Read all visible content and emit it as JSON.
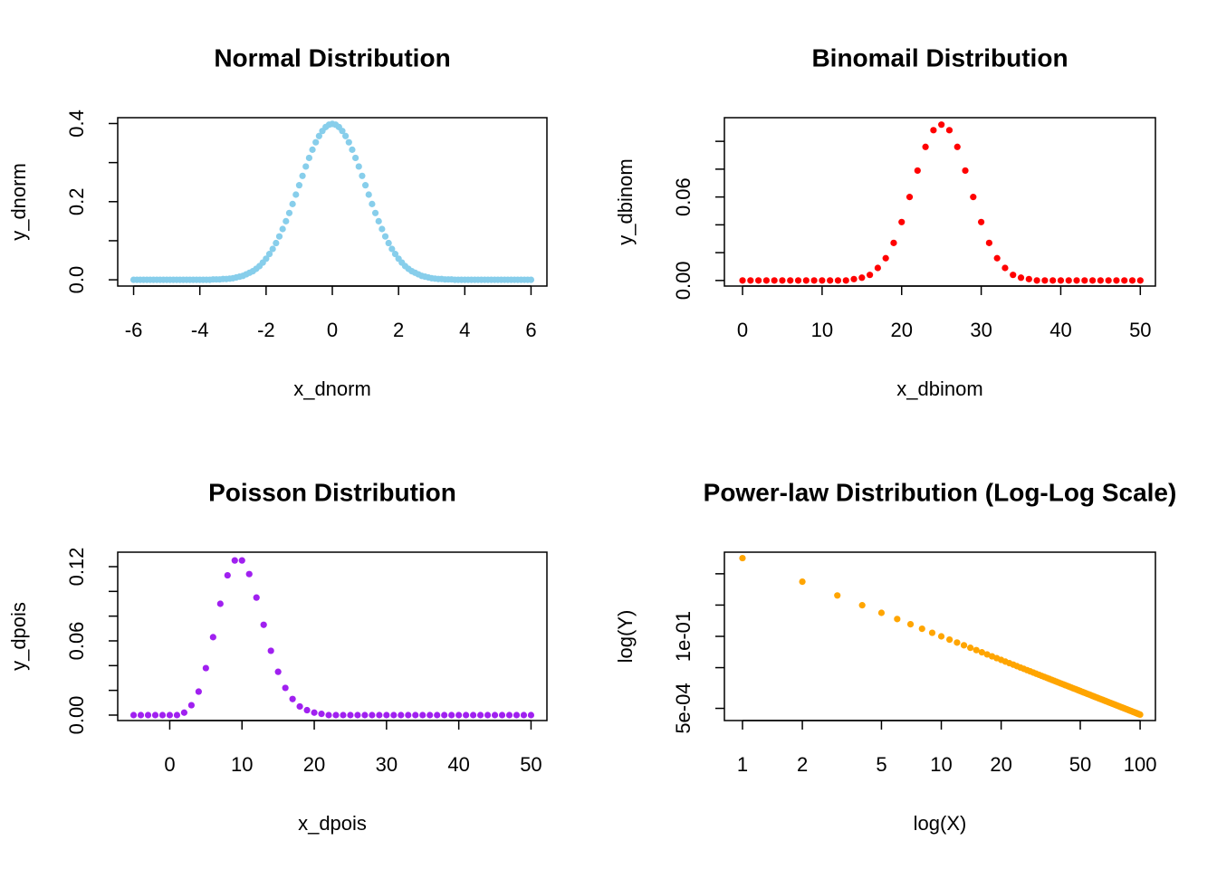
{
  "chart_data": [
    {
      "type": "scatter",
      "title": "Normal Distribution",
      "x_label": "x_dnorm",
      "y_label": "y_dnorm",
      "color": "#87ceeb",
      "x": [
        -6,
        -5.9,
        -5.8,
        -5.7,
        -5.6,
        -5.5,
        -5.4,
        -5.3,
        -5.2,
        -5.1,
        -5,
        -4.9,
        -4.8,
        -4.7,
        -4.6,
        -4.5,
        -4.4,
        -4.3,
        -4.2,
        -4.1,
        -4,
        -3.9,
        -3.8,
        -3.7,
        -3.6,
        -3.5,
        -3.4,
        -3.3,
        -3.2,
        -3.1,
        -3,
        -2.9,
        -2.8,
        -2.7,
        -2.6,
        -2.5,
        -2.4,
        -2.3,
        -2.2,
        -2.1,
        -2,
        -1.9,
        -1.8,
        -1.7,
        -1.6,
        -1.5,
        -1.4,
        -1.3,
        -1.2,
        -1.1,
        -1,
        -0.9,
        -0.8,
        -0.7,
        -0.6,
        -0.5,
        -0.4,
        -0.3,
        -0.2,
        -0.1,
        0,
        0.1,
        0.2,
        0.3,
        0.4,
        0.5,
        0.6,
        0.7,
        0.8,
        0.9,
        1,
        1.1,
        1.2,
        1.3,
        1.4,
        1.5,
        1.6,
        1.7,
        1.8,
        1.9,
        2,
        2.1,
        2.2,
        2.3,
        2.4,
        2.5,
        2.6,
        2.7,
        2.8,
        2.9,
        3,
        3.1,
        3.2,
        3.3,
        3.4,
        3.5,
        3.6,
        3.7,
        3.8,
        3.9,
        4,
        4.1,
        4.2,
        4.3,
        4.4,
        4.5,
        4.6,
        4.7,
        4.8,
        4.9,
        5,
        5.1,
        5.2,
        5.3,
        5.4,
        5.5,
        5.6,
        5.7,
        5.8,
        5.9,
        6
      ],
      "values": [
        0,
        0,
        0,
        0,
        0,
        0,
        0,
        0,
        0,
        0,
        0,
        0,
        0,
        0,
        0,
        0,
        0,
        0,
        0,
        0,
        0,
        0,
        0,
        0,
        0.001,
        0.001,
        0.001,
        0.002,
        0.002,
        0.003,
        0.004,
        0.006,
        0.008,
        0.01,
        0.014,
        0.018,
        0.022,
        0.028,
        0.035,
        0.044,
        0.054,
        0.066,
        0.079,
        0.094,
        0.111,
        0.13,
        0.15,
        0.171,
        0.194,
        0.218,
        0.242,
        0.266,
        0.29,
        0.312,
        0.333,
        0.352,
        0.368,
        0.381,
        0.391,
        0.397,
        0.399,
        0.397,
        0.391,
        0.381,
        0.368,
        0.352,
        0.333,
        0.312,
        0.29,
        0.266,
        0.242,
        0.218,
        0.194,
        0.171,
        0.15,
        0.13,
        0.111,
        0.094,
        0.079,
        0.066,
        0.054,
        0.044,
        0.035,
        0.028,
        0.022,
        0.018,
        0.014,
        0.01,
        0.008,
        0.006,
        0.004,
        0.003,
        0.002,
        0.002,
        0.001,
        0.001,
        0.001,
        0,
        0,
        0,
        0,
        0,
        0,
        0,
        0,
        0,
        0,
        0,
        0,
        0,
        0,
        0,
        0,
        0,
        0,
        0,
        0,
        0,
        0,
        0,
        0
      ],
      "xlim": [
        -6.48,
        6.48
      ],
      "ylim": [
        -0.016,
        0.415
      ],
      "xticks": [
        -6,
        -4,
        -2,
        0,
        2,
        4,
        6
      ],
      "yticks": [
        {
          "value": 0,
          "label": "0.0"
        },
        {
          "value": 0.1,
          "label": null
        },
        {
          "value": 0.2,
          "label": "0.2"
        },
        {
          "value": 0.3,
          "label": null
        },
        {
          "value": 0.4,
          "label": "0.4"
        }
      ]
    },
    {
      "type": "scatter",
      "title": "Binomail Distribution",
      "x_label": "x_dbinom",
      "y_label": "y_dbinom",
      "color": "#ff0000",
      "x": [
        0,
        1,
        2,
        3,
        4,
        5,
        6,
        7,
        8,
        9,
        10,
        11,
        12,
        13,
        14,
        15,
        16,
        17,
        18,
        19,
        20,
        21,
        22,
        23,
        24,
        25,
        26,
        27,
        28,
        29,
        30,
        31,
        32,
        33,
        34,
        35,
        36,
        37,
        38,
        39,
        40,
        41,
        42,
        43,
        44,
        45,
        46,
        47,
        48,
        49,
        50
      ],
      "values": [
        0,
        0,
        0,
        0,
        0,
        0,
        0,
        0,
        0,
        0,
        0,
        0,
        0,
        0,
        0.001,
        0.002,
        0.004,
        0.009,
        0.016,
        0.027,
        0.042,
        0.06,
        0.079,
        0.096,
        0.108,
        0.112,
        0.108,
        0.096,
        0.079,
        0.06,
        0.042,
        0.027,
        0.016,
        0.009,
        0.004,
        0.002,
        0.001,
        0,
        0,
        0,
        0,
        0,
        0,
        0,
        0,
        0,
        0,
        0,
        0,
        0,
        0
      ],
      "xlim": [
        -2.28,
        51.9
      ],
      "ylim": [
        -0.004,
        0.117
      ],
      "xticks": [
        0,
        10,
        20,
        30,
        40,
        50
      ],
      "yticks": [
        {
          "value": 0,
          "label": "0.00"
        },
        {
          "value": 0.02,
          "label": null
        },
        {
          "value": 0.04,
          "label": null
        },
        {
          "value": 0.06,
          "label": "0.06"
        },
        {
          "value": 0.08,
          "label": null
        },
        {
          "value": 0.1,
          "label": null
        }
      ]
    },
    {
      "type": "scatter",
      "title": "Poisson Distribution",
      "x_label": "x_dpois",
      "y_label": "y_dpois",
      "color": "#a020f0",
      "x": [
        -5,
        -4,
        -3,
        -2,
        -1,
        0,
        1,
        2,
        3,
        4,
        5,
        6,
        7,
        8,
        9,
        10,
        11,
        12,
        13,
        14,
        15,
        16,
        17,
        18,
        19,
        20,
        21,
        22,
        23,
        24,
        25,
        26,
        27,
        28,
        29,
        30,
        31,
        32,
        33,
        34,
        35,
        36,
        37,
        38,
        39,
        40,
        41,
        42,
        43,
        44,
        45,
        46,
        47,
        48,
        49,
        50
      ],
      "values": [
        0,
        0,
        0,
        0,
        0,
        0,
        0,
        0.002,
        0.008,
        0.019,
        0.038,
        0.063,
        0.09,
        0.113,
        0.125,
        0.125,
        0.114,
        0.095,
        0.073,
        0.052,
        0.035,
        0.022,
        0.013,
        0.007,
        0.004,
        0.002,
        0.001,
        0,
        0,
        0,
        0,
        0,
        0,
        0,
        0,
        0,
        0,
        0,
        0,
        0,
        0,
        0,
        0,
        0,
        0,
        0,
        0,
        0,
        0,
        0,
        0,
        0,
        0,
        0,
        0,
        0
      ],
      "xlim": [
        -7.2,
        52.2
      ],
      "ylim": [
        -0.0044,
        0.1317
      ],
      "xticks": [
        0,
        10,
        20,
        30,
        40,
        50
      ],
      "yticks": [
        {
          "value": 0,
          "label": "0.00"
        },
        {
          "value": 0.02,
          "label": null
        },
        {
          "value": 0.04,
          "label": null
        },
        {
          "value": 0.06,
          "label": "0.06"
        },
        {
          "value": 0.08,
          "label": null
        },
        {
          "value": 0.1,
          "label": null
        },
        {
          "value": 0.12,
          "label": "0.12"
        }
      ]
    },
    {
      "type": "scatter",
      "title": "Power-law Distribution (Log-Log Scale)",
      "x_label": "log(X)",
      "y_label": "log(Y)",
      "color": "#ffa500",
      "log": "xy",
      "x": [
        1,
        2,
        3,
        4,
        5,
        6,
        7,
        8,
        9,
        10,
        11,
        12,
        13,
        14,
        15,
        16,
        17,
        18,
        19,
        20,
        21,
        22,
        23,
        24,
        25,
        26,
        27,
        28,
        29,
        30,
        31,
        32,
        33,
        34,
        35,
        36,
        37,
        38,
        39,
        40,
        41,
        42,
        43,
        44,
        45,
        46,
        47,
        48,
        49,
        50,
        51,
        52,
        53,
        54,
        55,
        56,
        57,
        58,
        59,
        60,
        61,
        62,
        63,
        64,
        65,
        66,
        67,
        68,
        69,
        70,
        71,
        72,
        73,
        74,
        75,
        76,
        77,
        78,
        79,
        80,
        81,
        82,
        83,
        84,
        85,
        86,
        87,
        88,
        89,
        90,
        91,
        92,
        93,
        94,
        95,
        96,
        97,
        98,
        99,
        100
      ],
      "values": [
        31.6,
        5.59,
        2.03,
        0.988,
        0.565,
        0.358,
        0.244,
        0.175,
        0.13,
        0.0999,
        0.0787,
        0.0634,
        0.0519,
        0.0431,
        0.0363,
        0.0309,
        0.0265,
        0.023,
        0.0201,
        0.0177,
        0.0156,
        0.0139,
        0.0125,
        0.0112,
        0.0101,
        0.00917,
        0.00834,
        0.00762,
        0.00698,
        0.00641,
        0.00591,
        0.00545,
        0.00505,
        0.00469,
        0.00436,
        0.00406,
        0.00379,
        0.00355,
        0.00333,
        0.00312,
        0.00294,
        0.00276,
        0.00261,
        0.00246,
        0.00233,
        0.0022,
        0.00209,
        0.00198,
        0.00188,
        0.00179,
        0.0017,
        0.00162,
        0.00155,
        0.00147,
        0.00141,
        0.00135,
        0.00129,
        0.00123,
        0.00118,
        0.00113,
        0.00109,
        0.00104,
        0.001,
        0.000964,
        0.000928,
        0.000893,
        0.00086,
        0.000829,
        0.000799,
        0.000771,
        0.000744,
        0.000718,
        0.000694,
        0.000671,
        0.000649,
        0.000628,
        0.000607,
        0.000588,
        0.00057,
        0.000552,
        0.000535,
        0.000519,
        0.000504,
        0.000489,
        0.000474,
        0.000461,
        0.000448,
        0.000435,
        0.000423,
        0.000411,
        0.0004,
        0.000389,
        0.000379,
        0.000369,
        0.000359,
        0.00035,
        0.000341,
        0.000332,
        0.000324,
        0.000316
      ],
      "xlim": [
        0.811,
        119.4
      ],
      "ylim": [
        0.000204,
        49
      ],
      "xticks": [
        1,
        2,
        5,
        10,
        20,
        50,
        100
      ],
      "yticks": [
        {
          "value": 0.0005,
          "label": "5e-04"
        },
        {
          "value": 0.01,
          "label": null
        },
        {
          "value": 0.1,
          "label": "1e-01"
        },
        {
          "value": 1,
          "label": null
        },
        {
          "value": 10,
          "label": null
        }
      ]
    }
  ]
}
